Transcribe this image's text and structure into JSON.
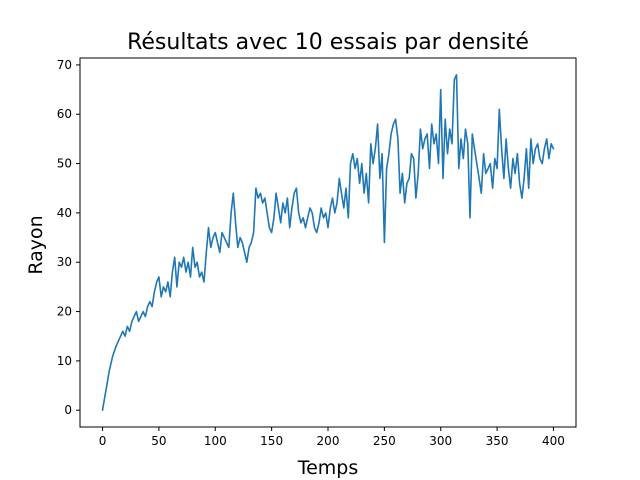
{
  "chart_data": {
    "type": "line",
    "title": "Résultats avec 10 essais par densité",
    "xlabel": "Temps",
    "ylabel": "Rayon",
    "xlim": [
      -20,
      420
    ],
    "ylim": [
      -3.4,
      71.4
    ],
    "x_ticks": [
      0,
      50,
      100,
      150,
      200,
      250,
      300,
      350,
      400
    ],
    "y_ticks": [
      0,
      10,
      20,
      30,
      40,
      50,
      60,
      70
    ],
    "grid": false,
    "legend": "none",
    "series": [
      {
        "color": "#1f77b4",
        "x": [
          0,
          3,
          6,
          9,
          12,
          14,
          16,
          18,
          20,
          22,
          24,
          26,
          28,
          30,
          32,
          34,
          36,
          38,
          40,
          42,
          44,
          46,
          48,
          50,
          52,
          54,
          56,
          58,
          60,
          62,
          64,
          66,
          68,
          70,
          72,
          74,
          76,
          78,
          80,
          82,
          84,
          86,
          88,
          90,
          92,
          94,
          96,
          98,
          100,
          102,
          104,
          106,
          108,
          110,
          112,
          114,
          116,
          118,
          120,
          122,
          124,
          126,
          128,
          130,
          132,
          134,
          136,
          138,
          140,
          142,
          144,
          146,
          148,
          150,
          152,
          154,
          156,
          158,
          160,
          162,
          164,
          166,
          168,
          170,
          172,
          174,
          176,
          178,
          180,
          182,
          184,
          186,
          188,
          190,
          192,
          194,
          196,
          198,
          200,
          202,
          204,
          206,
          208,
          210,
          212,
          214,
          216,
          218,
          220,
          222,
          224,
          226,
          228,
          230,
          232,
          234,
          236,
          238,
          240,
          242,
          244,
          246,
          248,
          250,
          252,
          254,
          256,
          258,
          260,
          262,
          264,
          266,
          268,
          270,
          272,
          274,
          276,
          278,
          280,
          282,
          284,
          286,
          288,
          290,
          292,
          294,
          296,
          298,
          300,
          302,
          304,
          306,
          308,
          310,
          312,
          314,
          316,
          318,
          320,
          322,
          324,
          326,
          328,
          330,
          332,
          334,
          336,
          338,
          340,
          342,
          344,
          346,
          348,
          350,
          352,
          354,
          356,
          358,
          360,
          362,
          364,
          366,
          368,
          370,
          372,
          374,
          376,
          378,
          380,
          382,
          384,
          386,
          388,
          390,
          392,
          394,
          396,
          398,
          400
        ],
        "y": [
          0,
          4,
          8,
          11,
          13,
          14,
          15,
          16,
          15,
          17,
          16,
          18,
          19,
          20,
          18,
          19,
          20,
          19,
          21,
          22,
          21,
          24,
          26,
          27,
          23,
          25,
          24,
          26,
          23,
          28,
          31,
          25,
          30,
          29,
          31,
          28,
          30,
          27,
          33,
          29,
          30,
          27,
          28,
          26,
          32,
          37,
          33,
          35,
          36,
          34,
          32,
          36,
          35,
          34,
          33,
          40,
          44,
          38,
          33,
          35,
          34,
          32,
          30,
          33,
          34,
          36,
          45,
          43,
          44,
          42,
          43,
          40,
          37,
          36,
          39,
          44,
          41,
          38,
          42,
          40,
          43,
          37,
          41,
          44,
          45,
          40,
          38,
          39,
          37,
          39,
          41,
          40,
          37,
          36,
          38,
          41,
          39,
          40,
          37,
          41,
          43,
          40,
          42,
          47,
          44,
          41,
          45,
          39,
          50,
          52,
          49,
          51,
          46,
          50,
          44,
          48,
          42,
          54,
          50,
          53,
          58,
          47,
          52,
          34,
          49,
          52,
          56,
          58,
          59,
          55,
          44,
          48,
          42,
          46,
          47,
          52,
          51,
          43,
          48,
          57,
          53,
          55,
          56,
          49,
          58,
          54,
          56,
          50,
          65,
          47,
          59,
          52,
          57,
          54,
          67,
          68,
          49,
          55,
          51,
          57,
          54,
          39,
          56,
          53,
          50,
          47,
          44,
          52,
          48,
          49,
          50,
          45,
          51,
          49,
          61,
          53,
          47,
          55,
          49,
          45,
          51,
          48,
          52,
          46,
          43,
          47,
          53,
          45,
          55,
          50,
          53,
          54,
          51,
          50,
          53,
          55,
          51,
          54,
          53
        ]
      }
    ]
  }
}
